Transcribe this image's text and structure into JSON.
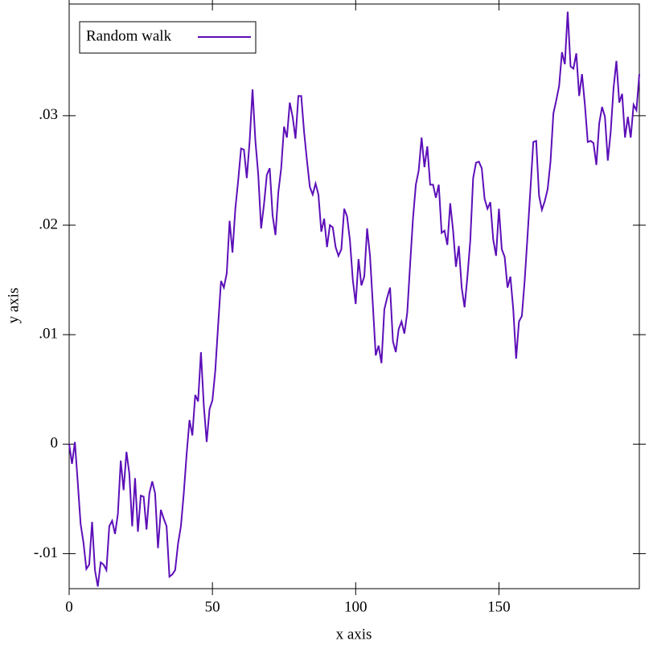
{
  "chart_data": {
    "type": "line",
    "xlabel": "x axis",
    "ylabel": "y axis",
    "x": [
      0,
      1,
      2,
      3,
      4,
      5,
      6,
      7,
      8,
      9,
      10,
      11,
      12,
      13,
      14,
      15,
      16,
      17,
      18,
      19,
      20,
      21,
      22,
      23,
      24,
      25,
      26,
      27,
      28,
      29,
      30,
      31,
      32,
      33,
      34,
      35,
      36,
      37,
      38,
      39,
      40,
      41,
      42,
      43,
      44,
      45,
      46,
      47,
      48,
      49,
      50,
      51,
      52,
      53,
      54,
      55,
      56,
      57,
      58,
      59,
      60,
      61,
      62,
      63,
      64,
      65,
      66,
      67,
      68,
      69,
      70,
      71,
      72,
      73,
      74,
      75,
      76,
      77,
      78,
      79,
      80,
      81,
      82,
      83,
      84,
      85,
      86,
      87,
      88,
      89,
      90,
      91,
      92,
      93,
      94,
      95,
      96,
      97,
      98,
      99,
      100,
      101,
      102,
      103,
      104,
      105,
      106,
      107,
      108,
      109,
      110,
      111,
      112,
      113,
      114,
      115,
      116,
      117,
      118,
      119,
      120,
      121,
      122,
      123,
      124,
      125,
      126,
      127,
      128,
      129,
      130,
      131,
      132,
      133,
      134,
      135,
      136,
      137,
      138,
      139,
      140,
      141,
      142,
      143,
      144,
      145,
      146,
      147,
      148,
      149,
      150,
      151,
      152,
      153,
      154,
      155,
      156,
      157,
      158,
      159,
      160,
      161,
      162,
      163,
      164,
      165,
      166,
      167,
      168,
      169,
      170,
      171,
      172,
      173,
      174,
      175,
      176,
      177,
      178,
      179,
      180,
      181,
      182,
      183,
      184,
      185,
      186,
      187,
      188,
      189,
      190,
      191,
      192,
      193,
      194,
      195,
      196,
      197,
      198,
      199
    ],
    "series": [
      {
        "name": "Random walk",
        "color": "#5c0fb8",
        "values": [
          0,
          -0.0018,
          0.0002,
          -0.0035,
          -0.0073,
          -0.009,
          -0.0114,
          -0.011,
          -0.0071,
          -0.0115,
          -0.013,
          -0.0108,
          -0.011,
          -0.0115,
          -0.0075,
          -0.007,
          -0.0082,
          -0.0064,
          -0.0015,
          -0.0042,
          -0.0007,
          -0.0027,
          -0.0075,
          -0.0031,
          -0.008,
          -0.0047,
          -0.0048,
          -0.0078,
          -0.0045,
          -0.0034,
          -0.0045,
          -0.0095,
          -0.006,
          -0.0068,
          -0.0075,
          -0.0121,
          -0.0119,
          -0.0115,
          -0.0091,
          -0.0075,
          -0.0045,
          -0.0009,
          0.0022,
          0.0008,
          0.0045,
          0.0039,
          0.0084,
          0.0035,
          0.0002,
          0.0032,
          0.004,
          0.0067,
          0.0109,
          0.0149,
          0.0143,
          0.0156,
          0.0204,
          0.0175,
          0.0215,
          0.0241,
          0.027,
          0.0269,
          0.0243,
          0.0277,
          0.0324,
          0.0277,
          0.0246,
          0.0197,
          0.0219,
          0.0246,
          0.0252,
          0.0209,
          0.0191,
          0.023,
          0.0252,
          0.029,
          0.028,
          0.0312,
          0.0299,
          0.0279,
          0.0318,
          0.0318,
          0.0285,
          0.0259,
          0.0235,
          0.0228,
          0.0238,
          0.0228,
          0.0194,
          0.0206,
          0.018,
          0.02,
          0.0198,
          0.018,
          0.0172,
          0.0178,
          0.0215,
          0.0208,
          0.0186,
          0.015,
          0.0128,
          0.0169,
          0.0145,
          0.0153,
          0.0197,
          0.0172,
          0.0127,
          0.0081,
          0.009,
          0.0074,
          0.0123,
          0.0134,
          0.0143,
          0.0094,
          0.0084,
          0.0105,
          0.0112,
          0.0101,
          0.012,
          0.0164,
          0.0206,
          0.0237,
          0.025,
          0.028,
          0.0253,
          0.0272,
          0.0237,
          0.0237,
          0.0225,
          0.0237,
          0.0193,
          0.0195,
          0.0182,
          0.022,
          0.0195,
          0.0162,
          0.0181,
          0.0143,
          0.0125,
          0.0153,
          0.0186,
          0.0243,
          0.0257,
          0.0258,
          0.0252,
          0.0224,
          0.0215,
          0.0221,
          0.0187,
          0.0172,
          0.0215,
          0.0178,
          0.0171,
          0.0143,
          0.0153,
          0.0123,
          0.0078,
          0.0112,
          0.0117,
          0.015,
          0.0191,
          0.0233,
          0.0276,
          0.0277,
          0.0227,
          0.0214,
          0.0222,
          0.0233,
          0.0258,
          0.0302,
          0.0314,
          0.0327,
          0.0358,
          0.0347,
          0.0395,
          0.0345,
          0.0343,
          0.0357,
          0.0318,
          0.0338,
          0.031,
          0.0276,
          0.0277,
          0.0275,
          0.0255,
          0.0293,
          0.0308,
          0.0299,
          0.0259,
          0.0285,
          0.0325,
          0.035,
          0.0312,
          0.032,
          0.028,
          0.0299,
          0.028,
          0.031,
          0.0305,
          0.0338
        ]
      }
    ],
    "xlim": [
      0,
      199
    ],
    "ylim": [
      -0.0132,
      0.0402
    ],
    "xticks": [
      0,
      50,
      100,
      150
    ],
    "yticks": [
      {
        "value": -0.01,
        "label": "-.01"
      },
      0,
      {
        "value": 0.01,
        "label": ".01"
      },
      {
        "value": 0.02,
        "label": ".02"
      },
      {
        "value": 0.03,
        "label": ".03"
      }
    ],
    "legend": "top-left"
  }
}
